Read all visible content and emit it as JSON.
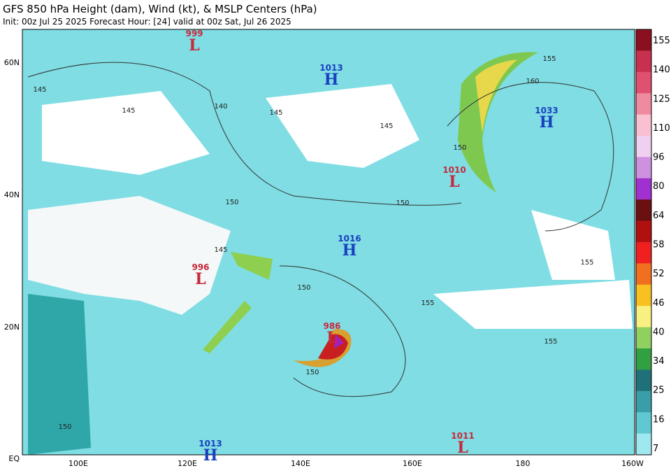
{
  "header": {
    "title": "GFS 850 hPa Height (dam), Wind (kt), & MSLP Centers (hPa)",
    "subtitle": "Init: 00z Jul 25 2025   Forecast Hour: [24]   valid at 00z Sat, Jul 26 2025"
  },
  "lat_labels": [
    "60N",
    "40N",
    "20N",
    "EQ"
  ],
  "lon_labels": [
    "100E",
    "120E",
    "140E",
    "160E",
    "180",
    "160W"
  ],
  "centers": [
    {
      "symbol": "L",
      "value": "999"
    },
    {
      "symbol": "H",
      "value": "1013"
    },
    {
      "symbol": "H",
      "value": "1033"
    },
    {
      "symbol": "L",
      "value": "1010"
    },
    {
      "symbol": "H",
      "value": "1016"
    },
    {
      "symbol": "L",
      "value": "996"
    },
    {
      "symbol": "L",
      "value": "986"
    },
    {
      "symbol": "L",
      "value": "1011"
    },
    {
      "symbol": "H",
      "value": "1013"
    }
  ],
  "contour_labels": [
    "145",
    "145",
    "140",
    "145",
    "145",
    "150",
    "155",
    "160",
    "150",
    "150",
    "145",
    "150",
    "155",
    "155",
    "155",
    "150",
    "150"
  ],
  "colorbar_ticks": [
    "155",
    "140",
    "125",
    "110",
    "96",
    "80",
    "64",
    "58",
    "52",
    "46",
    "40",
    "34",
    "25",
    "16",
    "7"
  ]
}
